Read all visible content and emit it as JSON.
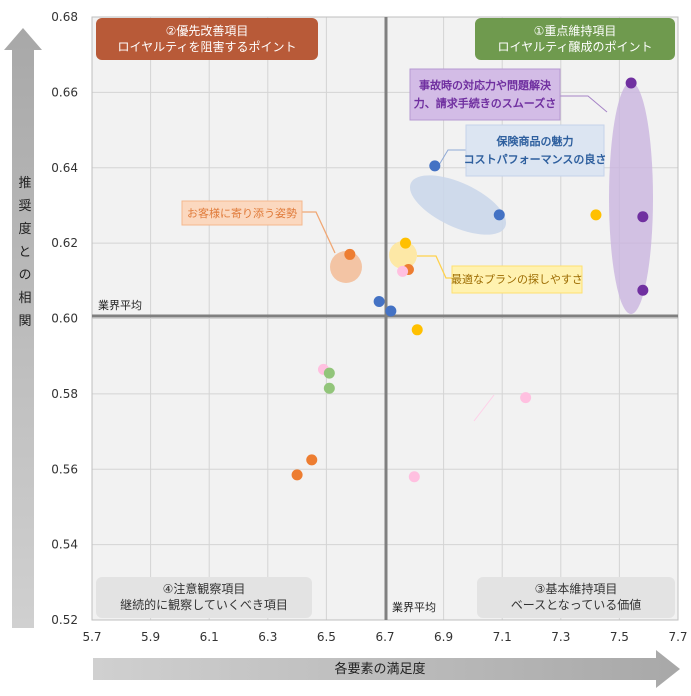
{
  "chart_data": {
    "type": "scatter",
    "xlabel": "各要素の満足度",
    "ylabel": "推奨度との相関",
    "xlim": [
      5.7,
      7.7
    ],
    "ylim": [
      0.52,
      0.68
    ],
    "x_ticks": [
      "5.7",
      "5.9",
      "6.1",
      "6.3",
      "6.5",
      "6.7",
      "6.9",
      "7.1",
      "7.3",
      "7.5",
      "7.7"
    ],
    "y_ticks": [
      "0.52",
      "0.54",
      "0.56",
      "0.58",
      "0.60",
      "0.62",
      "0.64",
      "0.66",
      "0.68"
    ],
    "grid": true,
    "industry_avg": {
      "x": 6.72,
      "y": 0.603,
      "x_label": "業界平均",
      "y_label": "業界平均"
    },
    "quadrants": {
      "top_left": {
        "line1": "②優先改善項目",
        "line2": "ロイヤルティを阻害するポイント",
        "color": "#b85a38"
      },
      "top_right": {
        "line1": "①重点維持項目",
        "line2": "ロイヤルティ醸成のポイント",
        "color": "#6f9a4e"
      },
      "bottom_left": {
        "line1": "④注意観察項目",
        "line2": "継続的に観察していくべき項目",
        "color": "#e3e3e3"
      },
      "bottom_right": {
        "line1": "③基本維持項目",
        "line2": "ベースとなっている価値",
        "color": "#e3e3e3"
      }
    },
    "annotations": [
      {
        "line1": "事故時の対応力や問題解決",
        "line2": "力、請求手続きのスムーズさ",
        "color": "#7030a0"
      },
      {
        "line1": "保険商品の魅力",
        "line2": "コストパフォーマンスの良さ",
        "color": "#2e5f9e"
      },
      {
        "line1": "お客様に寄り添う姿勢",
        "line2": "",
        "color": "#e07b3a"
      },
      {
        "line1": "最適なプランの探しやすさ",
        "line2": "",
        "color": "#9c6b00"
      }
    ],
    "series": [
      {
        "color": "#7030a0",
        "points": [
          [
            7.54,
            0.6625
          ],
          [
            7.58,
            0.627
          ],
          [
            7.58,
            0.6075
          ]
        ]
      },
      {
        "color": "#4472c4",
        "points": [
          [
            6.87,
            0.6405
          ],
          [
            7.09,
            0.6275
          ],
          [
            6.68,
            0.6045
          ],
          [
            6.72,
            0.602
          ]
        ]
      },
      {
        "color": "#ed7d31",
        "points": [
          [
            6.58,
            0.617
          ],
          [
            6.78,
            0.613
          ],
          [
            6.45,
            0.5625
          ],
          [
            6.4,
            0.5585
          ]
        ]
      },
      {
        "color": "#ffc000",
        "points": [
          [
            6.77,
            0.62
          ],
          [
            7.42,
            0.6275
          ],
          [
            6.81,
            0.597
          ]
        ]
      },
      {
        "color": "#ffc0e0",
        "points": [
          [
            6.76,
            0.6125
          ],
          [
            6.49,
            0.5865
          ],
          [
            7.18,
            0.579
          ],
          [
            6.8,
            0.558
          ]
        ]
      },
      {
        "color": "#92c57a",
        "points": [
          [
            6.51,
            0.5855
          ],
          [
            6.51,
            0.5815
          ]
        ]
      }
    ]
  }
}
